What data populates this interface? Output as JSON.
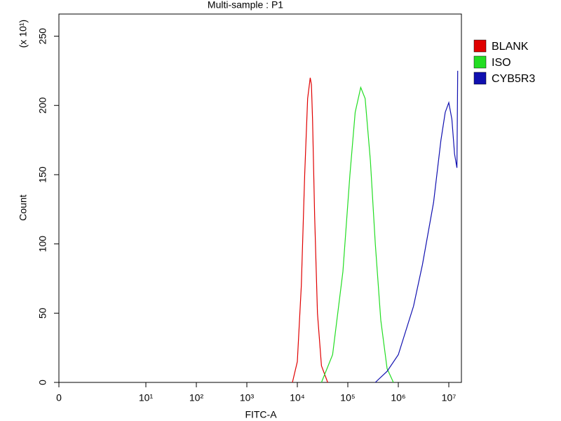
{
  "chart_data": {
    "type": "line",
    "title": "Multi-sample : P1",
    "xlabel": "FITC-A",
    "ylabel": "Count",
    "y_multiplier": "(x 10¹)",
    "xscale": "log",
    "xlim": [
      0,
      15000000
    ],
    "xticks": [
      0,
      {
        "value": 10,
        "label": "10¹"
      },
      {
        "value": 100,
        "label": "10²"
      },
      {
        "value": 1000,
        "label": "10³"
      },
      {
        "value": 10000,
        "label": "10⁴"
      },
      {
        "value": 100000,
        "label": "10⁵"
      },
      {
        "value": 1000000,
        "label": "10⁶"
      },
      {
        "value": 10000000,
        "label": "10⁷"
      }
    ],
    "ylim": [
      0,
      266
    ],
    "yticks": [
      0,
      50,
      100,
      150,
      200,
      250
    ],
    "legend": "right",
    "series": [
      {
        "name": "BLANK",
        "color": "#e00000",
        "x": [
          8000,
          10000,
          12000,
          14000,
          16000,
          18000,
          19000,
          20000,
          22000,
          25000,
          30000,
          40000
        ],
        "values": [
          0,
          15,
          70,
          150,
          205,
          220,
          215,
          190,
          120,
          50,
          12,
          0
        ]
      },
      {
        "name": "ISO",
        "color": "#22dd22",
        "x": [
          30000,
          50000,
          80000,
          110000,
          140000,
          180000,
          220000,
          280000,
          350000,
          450000,
          600000,
          800000
        ],
        "values": [
          0,
          20,
          80,
          150,
          195,
          213,
          205,
          160,
          100,
          45,
          10,
          0
        ]
      },
      {
        "name": "CYB5R3",
        "color": "#1010b0",
        "x": [
          350000,
          600000,
          1000000,
          2000000,
          3000000,
          5000000,
          7000000,
          8500000,
          10000000,
          11500000,
          13000000,
          14500000,
          15000000
        ],
        "values": [
          0,
          8,
          20,
          55,
          85,
          130,
          175,
          195,
          202,
          190,
          165,
          155,
          225
        ]
      }
    ]
  }
}
